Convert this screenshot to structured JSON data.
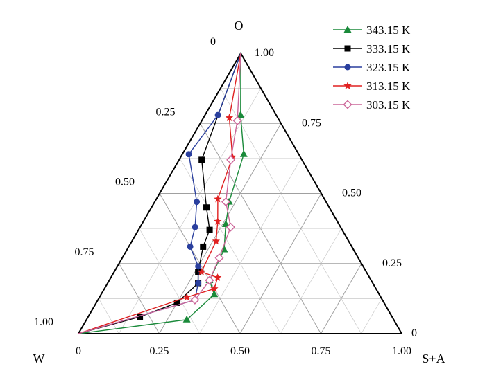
{
  "chart_data": {
    "type": "scatter",
    "subtype": "ternary-line",
    "vertices": {
      "top": "O",
      "left": "W",
      "right": "S+A"
    },
    "ticks": [
      "0",
      "0.25",
      "0.50",
      "0.75",
      "1.00"
    ],
    "grid": true,
    "legend_position": "top-right",
    "series": [
      {
        "name": "343.15 K",
        "color": "#1a8a3a",
        "marker": "triangle",
        "points": [
          {
            "s": 0.0,
            "o": 1.0
          },
          {
            "s": 0.11,
            "o": 0.78
          },
          {
            "s": 0.19,
            "o": 0.64
          },
          {
            "s": 0.23,
            "o": 0.47
          },
          {
            "s": 0.26,
            "o": 0.39
          },
          {
            "s": 0.3,
            "o": 0.3
          },
          {
            "s": 0.31,
            "o": 0.19
          },
          {
            "s": 0.35,
            "o": 0.14
          },
          {
            "s": 0.31,
            "o": 0.05
          },
          {
            "s": 0.0,
            "o": 0.0
          }
        ]
      },
      {
        "name": "333.15 K",
        "color": "#000000",
        "marker": "square",
        "points": [
          {
            "s": 0.0,
            "o": 1.0
          },
          {
            "s": 0.07,
            "o": 0.62
          },
          {
            "s": 0.17,
            "o": 0.45
          },
          {
            "s": 0.22,
            "o": 0.37
          },
          {
            "s": 0.23,
            "o": 0.31
          },
          {
            "s": 0.26,
            "o": 0.22
          },
          {
            "s": 0.28,
            "o": 0.18
          },
          {
            "s": 0.25,
            "o": 0.11
          },
          {
            "s": 0.16,
            "o": 0.06
          },
          {
            "s": 0.0,
            "o": 0.0
          }
        ]
      },
      {
        "name": "323.15 K",
        "color": "#2a3f9e",
        "marker": "circle",
        "points": [
          {
            "s": 0.0,
            "o": 1.0
          },
          {
            "s": 0.04,
            "o": 0.78
          },
          {
            "s": 0.02,
            "o": 0.64
          },
          {
            "s": 0.13,
            "o": 0.47
          },
          {
            "s": 0.17,
            "o": 0.38
          },
          {
            "s": 0.19,
            "o": 0.31
          },
          {
            "s": 0.25,
            "o": 0.24
          },
          {
            "s": 0.28,
            "o": 0.18
          },
          {
            "s": 0.3,
            "o": 0.12
          },
          {
            "s": 0.0,
            "o": 0.0
          }
        ]
      },
      {
        "name": "313.15 K",
        "color": "#e02020",
        "marker": "star",
        "points": [
          {
            "s": 0.0,
            "o": 1.0
          },
          {
            "s": 0.08,
            "o": 0.77
          },
          {
            "s": 0.16,
            "o": 0.63
          },
          {
            "s": 0.19,
            "o": 0.48
          },
          {
            "s": 0.23,
            "o": 0.4
          },
          {
            "s": 0.26,
            "o": 0.33
          },
          {
            "s": 0.27,
            "o": 0.22
          },
          {
            "s": 0.33,
            "o": 0.2
          },
          {
            "s": 0.34,
            "o": 0.16
          },
          {
            "s": 0.27,
            "o": 0.13
          },
          {
            "s": 0.0,
            "o": 0.0
          }
        ]
      },
      {
        "name": "303.15 K",
        "color": "#cc6699",
        "marker": "diamond-open",
        "points": [
          {
            "s": 0.0,
            "o": 1.0
          },
          {
            "s": 0.11,
            "o": 0.76
          },
          {
            "s": 0.16,
            "o": 0.62
          },
          {
            "s": 0.22,
            "o": 0.47
          },
          {
            "s": 0.28,
            "o": 0.38
          },
          {
            "s": 0.3,
            "o": 0.27
          },
          {
            "s": 0.31,
            "o": 0.19
          },
          {
            "s": 0.3,
            "o": 0.12
          },
          {
            "s": 0.0,
            "o": 0.0
          }
        ]
      }
    ]
  }
}
